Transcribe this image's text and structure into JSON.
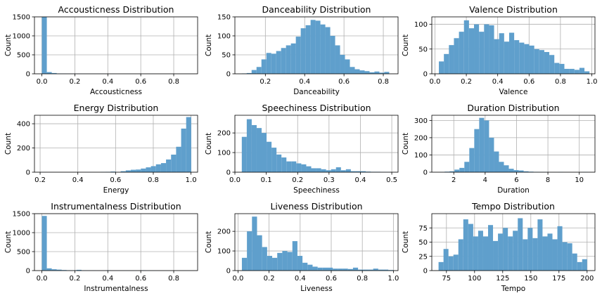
{
  "chart_data": [
    {
      "type": "bar",
      "title": "Accousticness Distribution",
      "xlabel": "Accousticness",
      "ylabel": "Count",
      "xlim": [
        -0.045,
        0.945
      ],
      "ylim": [
        0,
        1500
      ],
      "xticks": [
        0.0,
        0.2,
        0.4,
        0.6,
        0.8
      ],
      "xtick_labels": [
        "0.0",
        "0.2",
        "0.4",
        "0.6",
        "0.8"
      ],
      "yticks": [
        0,
        500,
        1000,
        1500
      ],
      "ytick_labels": [
        "0",
        "500",
        "1000",
        "1500"
      ],
      "bin_start": 0.0,
      "bin_width": 0.03,
      "values": [
        1520,
        45,
        20,
        8,
        5,
        3,
        2,
        2,
        1,
        1,
        1,
        1,
        1,
        0,
        1,
        0,
        0,
        1,
        0,
        0,
        0,
        0,
        1,
        0,
        0,
        0,
        0,
        0,
        0,
        1
      ],
      "grid": true
    },
    {
      "type": "bar",
      "title": "Danceability Distribution",
      "xlabel": "Danceability",
      "ylabel": "Count",
      "xlim": [
        0.045,
        0.875
      ],
      "ylim": [
        0,
        150
      ],
      "xticks": [
        0.2,
        0.4,
        0.6,
        0.8
      ],
      "xtick_labels": [
        "0.2",
        "0.4",
        "0.6",
        "0.8"
      ],
      "yticks": [
        0,
        50,
        100,
        150
      ],
      "ytick_labels": [
        "0",
        "50",
        "100",
        "150"
      ],
      "bin_start": 0.08,
      "bin_width": 0.025,
      "values": [
        1,
        2,
        10,
        18,
        38,
        55,
        53,
        60,
        68,
        75,
        80,
        98,
        120,
        128,
        142,
        140,
        130,
        123,
        100,
        75,
        50,
        38,
        18,
        12,
        9,
        7,
        4,
        6,
        3,
        5
      ],
      "grid": true
    },
    {
      "type": "bar",
      "title": "Valence Distribution",
      "xlabel": "Valence",
      "ylabel": "Count",
      "xlim": [
        -0.02,
        1.02
      ],
      "ylim": [
        0,
        115
      ],
      "xticks": [
        0.0,
        0.2,
        0.4,
        0.6,
        0.8,
        1.0
      ],
      "xtick_labels": [
        "0.0",
        "0.2",
        "0.4",
        "0.6",
        "0.8",
        "1.0"
      ],
      "yticks": [
        0,
        50,
        100
      ],
      "ytick_labels": [
        "0",
        "50",
        "100"
      ],
      "bin_start": 0.025,
      "bin_width": 0.032,
      "values": [
        25,
        40,
        58,
        72,
        85,
        108,
        92,
        100,
        85,
        100,
        98,
        70,
        82,
        65,
        83,
        68,
        63,
        60,
        57,
        50,
        48,
        44,
        38,
        22,
        20,
        10,
        10,
        8,
        12,
        5
      ],
      "grid": true
    },
    {
      "type": "bar",
      "title": "Energy Distribution",
      "xlabel": "Energy",
      "ylabel": "Count",
      "xlim": [
        0.17,
        1.035
      ],
      "ylim": [
        0,
        470
      ],
      "xticks": [
        0.2,
        0.4,
        0.6,
        0.8,
        1.0
      ],
      "xtick_labels": [
        "0.2",
        "0.4",
        "0.6",
        "0.8",
        "1.0"
      ],
      "yticks": [
        0,
        200,
        400
      ],
      "ytick_labels": [
        "0",
        "200",
        "400"
      ],
      "bin_start": 0.2,
      "bin_width": 0.0267,
      "values": [
        1,
        0,
        0,
        0,
        0,
        0,
        0,
        0,
        0,
        1,
        0,
        0,
        2,
        3,
        5,
        1,
        8,
        15,
        20,
        22,
        30,
        40,
        50,
        65,
        75,
        105,
        145,
        210,
        360,
        455
      ],
      "grid": true
    },
    {
      "type": "bar",
      "title": "Speechiness Distribution",
      "xlabel": "Speechiness",
      "ylabel": "Count",
      "xlim": [
        0.0,
        0.52
      ],
      "ylim": [
        0,
        290
      ],
      "xticks": [
        0.0,
        0.1,
        0.2,
        0.3,
        0.4,
        0.5
      ],
      "xtick_labels": [
        "0.0",
        "0.1",
        "0.2",
        "0.3",
        "0.4",
        "0.5"
      ],
      "yticks": [
        0,
        100,
        200
      ],
      "ytick_labels": [
        "0",
        "100",
        "200"
      ],
      "bin_start": 0.022,
      "bin_width": 0.0158,
      "values": [
        180,
        270,
        240,
        225,
        200,
        155,
        125,
        90,
        75,
        55,
        55,
        45,
        40,
        30,
        20,
        20,
        15,
        10,
        15,
        25,
        10,
        15,
        5,
        5,
        5,
        3,
        2,
        2,
        1,
        1
      ],
      "grid": true
    },
    {
      "type": "bar",
      "title": "Duration Distribution",
      "xlabel": "Duration",
      "ylabel": "Count",
      "xlim": [
        0.6,
        11.0
      ],
      "ylim": [
        0,
        330
      ],
      "xticks": [
        2,
        4,
        6,
        8,
        10
      ],
      "xtick_labels": [
        "2",
        "4",
        "6",
        "8",
        "10"
      ],
      "yticks": [
        0,
        100,
        200,
        300
      ],
      "ytick_labels": [
        "0",
        "100",
        "200",
        "300"
      ],
      "bin_start": 1.1,
      "bin_width": 0.315,
      "values": [
        1,
        3,
        5,
        15,
        25,
        60,
        140,
        250,
        315,
        300,
        200,
        120,
        60,
        40,
        20,
        12,
        10,
        5,
        3,
        2,
        1,
        1,
        0,
        0,
        1,
        0,
        0,
        0,
        0,
        1
      ],
      "grid": true
    },
    {
      "type": "bar",
      "title": "Instrumentalness Distribution",
      "xlabel": "Instrumentalness",
      "ylabel": "Count",
      "xlim": [
        -0.045,
        0.945
      ],
      "ylim": [
        0,
        1500
      ],
      "xticks": [
        0.0,
        0.2,
        0.4,
        0.6,
        0.8
      ],
      "xtick_labels": [
        "0.0",
        "0.2",
        "0.4",
        "0.6",
        "0.8"
      ],
      "yticks": [
        0,
        500,
        1000,
        1500
      ],
      "ytick_labels": [
        "0",
        "500",
        "1000",
        "1500"
      ],
      "bin_start": 0.0,
      "bin_width": 0.03,
      "values": [
        1440,
        60,
        35,
        25,
        15,
        10,
        8,
        20,
        5,
        3,
        3,
        2,
        2,
        8,
        2,
        2,
        1,
        1,
        1,
        0,
        8,
        1,
        1,
        0,
        0,
        0,
        0,
        0,
        1,
        1
      ],
      "grid": true
    },
    {
      "type": "bar",
      "title": "Liveness Distribution",
      "xlabel": "Liveness",
      "ylabel": "Count",
      "xlim": [
        -0.02,
        1.03
      ],
      "ylim": [
        0,
        290
      ],
      "xticks": [
        0.0,
        0.2,
        0.4,
        0.6,
        0.8,
        1.0
      ],
      "xtick_labels": [
        "0.0",
        "0.2",
        "0.4",
        "0.6",
        "0.8",
        "1.0"
      ],
      "yticks": [
        0,
        100,
        200
      ],
      "ytick_labels": [
        "0",
        "100",
        "200"
      ],
      "bin_start": 0.025,
      "bin_width": 0.0325,
      "values": [
        65,
        200,
        275,
        180,
        120,
        75,
        65,
        90,
        100,
        95,
        150,
        75,
        40,
        30,
        20,
        15,
        15,
        15,
        10,
        10,
        10,
        8,
        15,
        5,
        5,
        5,
        10,
        5,
        5,
        3
      ],
      "grid": true
    },
    {
      "type": "bar",
      "title": "Tempo Distribution",
      "xlabel": "Tempo",
      "ylabel": "Count",
      "xlim": [
        62.0,
        207.0
      ],
      "ylim": [
        0,
        100
      ],
      "xticks": [
        75,
        100,
        125,
        150,
        175,
        200
      ],
      "xtick_labels": [
        "75",
        "100",
        "125",
        "150",
        "175",
        "200"
      ],
      "yticks": [
        0,
        25,
        50,
        75
      ],
      "ytick_labels": [
        "0",
        "25",
        "50",
        "75"
      ],
      "bin_start": 68.0,
      "bin_width": 4.4,
      "values": [
        15,
        38,
        25,
        28,
        55,
        90,
        82,
        60,
        70,
        60,
        80,
        52,
        65,
        75,
        60,
        70,
        92,
        55,
        75,
        57,
        90,
        60,
        65,
        55,
        78,
        50,
        48,
        30,
        15,
        20
      ],
      "grid": true
    }
  ]
}
